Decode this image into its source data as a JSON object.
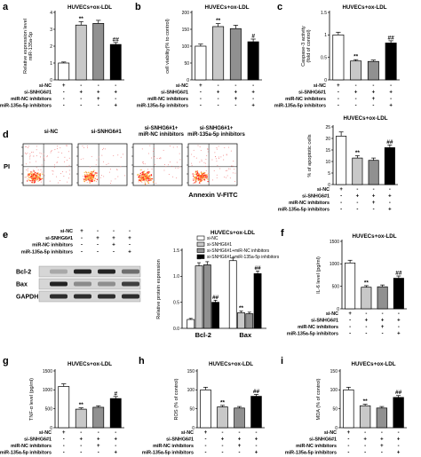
{
  "panel_letters": [
    "a",
    "b",
    "c",
    "d",
    "e",
    "f",
    "g",
    "h",
    "i"
  ],
  "condition_labels": [
    "si-NC",
    "si-SNHG6#1",
    "miR-NC inhibitors",
    "miR-135a-5p inhibitors"
  ],
  "condition_labels_short": [
    "si-NC",
    "si-SNHG6#1",
    "miR-NC inhibitors",
    "miR-135a-5p inhibitors"
  ],
  "plus": "+",
  "minus": "-",
  "colors": {
    "white": "#ffffff",
    "lightgray": "#c8c8c8",
    "gray": "#909090",
    "black": "#000000",
    "axis": "#000000"
  },
  "chart_data": [
    {
      "id": "a",
      "type": "bar",
      "title": "HUVECs+ox-LDL",
      "ylabel": "Relative expression level\nmiR-135a-5p",
      "ylim": [
        0,
        4
      ],
      "yticks": [
        0,
        1,
        2,
        3,
        4
      ],
      "values": [
        1.0,
        3.25,
        3.35,
        2.1
      ],
      "errors": [
        0.06,
        0.2,
        0.18,
        0.12
      ],
      "annotations": [
        "",
        "**",
        "",
        "##"
      ],
      "signs": [
        [
          "+",
          "-",
          "-",
          "-"
        ],
        [
          "-",
          "+",
          "+",
          "+"
        ],
        [
          "-",
          "-",
          "+",
          "-"
        ],
        [
          "-",
          "-",
          "-",
          "+"
        ]
      ]
    },
    {
      "id": "b",
      "type": "bar",
      "title": "HUVECs+ox-LDL",
      "ylabel": "cell viability(% to control)",
      "ylim": [
        0,
        200
      ],
      "yticks": [
        0,
        50,
        100,
        150,
        200
      ],
      "values": [
        100,
        158,
        152,
        113
      ],
      "errors": [
        6,
        9,
        10,
        8
      ],
      "annotations": [
        "",
        "**",
        "",
        "#"
      ],
      "signs": [
        [
          "+",
          "-",
          "-",
          "-"
        ],
        [
          "-",
          "+",
          "+",
          "+"
        ],
        [
          "-",
          "-",
          "+",
          "-"
        ],
        [
          "-",
          "-",
          "-",
          "+"
        ]
      ]
    },
    {
      "id": "c",
      "type": "bar",
      "title": "HUVECs+ox-LDL",
      "ylabel": "Caspase-3 activity\n(fold of control)",
      "ylim": [
        0,
        1.5
      ],
      "yticks": [
        0.0,
        0.5,
        1.0,
        1.5
      ],
      "values": [
        1.0,
        0.42,
        0.41,
        0.82
      ],
      "errors": [
        0.06,
        0.03,
        0.03,
        0.05
      ],
      "annotations": [
        "",
        "**",
        "",
        "##"
      ],
      "signs": [
        [
          "+",
          "-",
          "-",
          "-"
        ],
        [
          "-",
          "+",
          "+",
          "+"
        ],
        [
          "-",
          "-",
          "+",
          "-"
        ],
        [
          "-",
          "-",
          "-",
          "+"
        ]
      ]
    },
    {
      "id": "d",
      "type": "bar",
      "title": "HUVECs+ox-LDL",
      "ylabel": "% of apoptotic cells",
      "ylim": [
        0,
        25
      ],
      "yticks": [
        0,
        5,
        10,
        15,
        20,
        25
      ],
      "values": [
        21,
        11.5,
        10.5,
        16
      ],
      "errors": [
        1.8,
        1.0,
        1.0,
        1.2
      ],
      "annotations": [
        "",
        "**",
        "",
        "##"
      ],
      "signs": [
        [
          "+",
          "-",
          "-",
          "-"
        ],
        [
          "-",
          "+",
          "+",
          "+"
        ],
        [
          "-",
          "-",
          "+",
          "-"
        ],
        [
          "-",
          "-",
          "-",
          "+"
        ]
      ]
    },
    {
      "id": "e",
      "type": "bar",
      "title": "HUVECs+ox-LDL",
      "ylabel": "Relative protein expression",
      "ylim": [
        0,
        1.5
      ],
      "yticks": [
        0.0,
        0.5,
        1.0,
        1.5
      ],
      "categories": [
        "Bcl-2",
        "Bax"
      ],
      "series": [
        {
          "name": "si-NC",
          "values": [
            0.17,
            1.3
          ],
          "errors": [
            0.02,
            0.05
          ]
        },
        {
          "name": "si-SNHG6#1",
          "values": [
            1.2,
            0.3
          ],
          "errors": [
            0.06,
            0.03
          ]
        },
        {
          "name": "si-SNHG6#1+miR-NC inhibitors",
          "values": [
            1.22,
            0.28
          ],
          "errors": [
            0.06,
            0.03
          ]
        },
        {
          "name": "si-SNHG6#1+miR-135a-5p inhibitors",
          "values": [
            0.5,
            1.05
          ],
          "errors": [
            0.04,
            0.05
          ]
        }
      ],
      "annotations": [
        [
          "",
          "**",
          "",
          "##"
        ],
        [
          "",
          "**",
          "",
          "##"
        ]
      ]
    },
    {
      "id": "f",
      "type": "bar",
      "title": "HUVECs+ox-LDL",
      "ylabel": "IL-6 level (pg/ml)",
      "ylim": [
        0,
        1500
      ],
      "yticks": [
        0,
        500,
        1000,
        1500
      ],
      "values": [
        1020,
        480,
        490,
        680
      ],
      "errors": [
        60,
        35,
        40,
        50
      ],
      "annotations": [
        "",
        "**",
        "",
        "##"
      ],
      "signs": [
        [
          "+",
          "-",
          "-",
          "-"
        ],
        [
          "-",
          "+",
          "+",
          "+"
        ],
        [
          "-",
          "-",
          "+",
          "-"
        ],
        [
          "-",
          "-",
          "-",
          "+"
        ]
      ]
    },
    {
      "id": "g",
      "type": "bar",
      "title": "HUVECs+ox-LDL",
      "ylabel": "TNF-α level (pg/ml)",
      "ylim": [
        0,
        1500
      ],
      "yticks": [
        0,
        500,
        1000,
        1500
      ],
      "values": [
        1090,
        490,
        540,
        770
      ],
      "errors": [
        70,
        35,
        40,
        55
      ],
      "annotations": [
        "",
        "**",
        "",
        "#"
      ],
      "signs": [
        [
          "+",
          "-",
          "-",
          "-"
        ],
        [
          "-",
          "+",
          "+",
          "+"
        ],
        [
          "-",
          "-",
          "+",
          "-"
        ],
        [
          "-",
          "-",
          "-",
          "+"
        ]
      ]
    },
    {
      "id": "h",
      "type": "bar",
      "title": "HUVECs+ox-LDL",
      "ylabel": "ROS (% of control)",
      "ylim": [
        0,
        150
      ],
      "yticks": [
        0,
        50,
        100,
        150
      ],
      "values": [
        100,
        55,
        52,
        83
      ],
      "errors": [
        7,
        4,
        4,
        5
      ],
      "annotations": [
        "",
        "**",
        "",
        "##"
      ],
      "signs": [
        [
          "+",
          "-",
          "-",
          "-"
        ],
        [
          "-",
          "+",
          "+",
          "+"
        ],
        [
          "-",
          "-",
          "+",
          "-"
        ],
        [
          "-",
          "-",
          "-",
          "+"
        ]
      ]
    },
    {
      "id": "i",
      "type": "bar",
      "title": "HUVECs+ox-LDL",
      "ylabel": "MDA (% of control)",
      "ylim": [
        0,
        150
      ],
      "yticks": [
        0,
        50,
        100,
        150
      ],
      "values": [
        100,
        58,
        52,
        80
      ],
      "errors": [
        7,
        4,
        4,
        5
      ],
      "annotations": [
        "",
        "**",
        "",
        "##"
      ],
      "signs": [
        [
          "+",
          "-",
          "-",
          "-"
        ],
        [
          "-",
          "+",
          "+",
          "+"
        ],
        [
          "-",
          "-",
          "+",
          "-"
        ],
        [
          "-",
          "-",
          "-",
          "+"
        ]
      ]
    }
  ],
  "flow": {
    "panels": [
      {
        "label": "si-NC"
      },
      {
        "label": "si-SNHG6#1"
      },
      {
        "label": "si-SNHG6#1+\nmiR-NC inhibitors"
      },
      {
        "label": "si-SNHG6#1+\nmiR-135a-5p inhibitors"
      }
    ],
    "y_axis": "PI",
    "x_axis": "Annexin V-FITC"
  },
  "blot": {
    "signs": [
      [
        "+",
        "-",
        "-",
        "-"
      ],
      [
        "-",
        "+",
        "+",
        "+"
      ],
      [
        "-",
        "-",
        "+",
        "-"
      ],
      [
        "-",
        "-",
        "-",
        "+"
      ]
    ],
    "bands": [
      {
        "name": "Bcl-2",
        "intensity": [
          0.25,
          0.95,
          0.95,
          0.55
        ]
      },
      {
        "name": "Bax",
        "intensity": [
          0.95,
          0.4,
          0.38,
          0.8
        ]
      },
      {
        "name": "GAPDH",
        "intensity": [
          0.9,
          0.9,
          0.9,
          0.9
        ]
      }
    ]
  }
}
